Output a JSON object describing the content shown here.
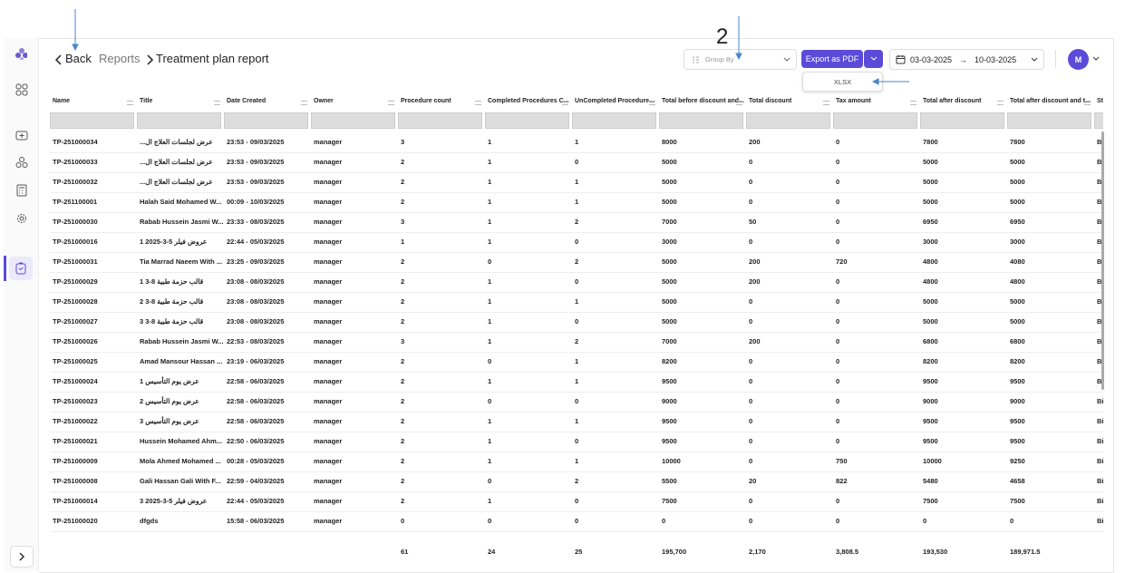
{
  "header": {
    "back": "Back",
    "breadcrumb": [
      "Reports",
      "Treatment plan report"
    ],
    "group_by": "Group By",
    "export": "Export as PDF",
    "export_menu": [
      "XLSX"
    ],
    "date_from": "03-03-2025",
    "date_to": "10-03-2025",
    "avatar": "M"
  },
  "annotations": {
    "label": "2"
  },
  "table": {
    "columns": [
      "Name",
      "Title",
      "Date Created",
      "Owner",
      "Procedure count",
      "Completed Procedures C...",
      "UnCompleted Procedure...",
      "Total before discount and...",
      "Total discount",
      "Tax amount",
      "Total after discount",
      "Total after discount and t...",
      "St"
    ],
    "rows": [
      [
        "TP-251000034",
        "عرض لجلسات العلاج ال...",
        "23:53 - 09/03/2025",
        "manager",
        "3",
        "1",
        "1",
        "8000",
        "200",
        "0",
        "7800",
        "7800",
        "Bi"
      ],
      [
        "TP-251000033",
        "عرض لجلسات العلاج ال...",
        "23:53 - 09/03/2025",
        "manager",
        "2",
        "1",
        "0",
        "5000",
        "0",
        "0",
        "5000",
        "5000",
        "Bi"
      ],
      [
        "TP-251000032",
        "عرض لجلسات العلاج ال...",
        "23:53 - 09/03/2025",
        "manager",
        "2",
        "1",
        "1",
        "5000",
        "0",
        "0",
        "5000",
        "5000",
        "Bi"
      ],
      [
        "TP-251100001",
        "Halah Said Mohamed W...",
        "00:09 - 10/03/2025",
        "manager",
        "2",
        "1",
        "1",
        "5000",
        "0",
        "0",
        "5000",
        "5000",
        "Bi"
      ],
      [
        "TP-251000030",
        "Rabab Hussein Jasmi W...",
        "23:33 - 08/03/2025",
        "manager",
        "3",
        "1",
        "2",
        "7000",
        "50",
        "0",
        "6950",
        "6950",
        "Bi"
      ],
      [
        "TP-251000016",
        "عروض فيلر 5-3-2025 1",
        "22:44 - 05/03/2025",
        "manager",
        "1",
        "1",
        "0",
        "3000",
        "0",
        "0",
        "3000",
        "3000",
        "Bi"
      ],
      [
        "TP-251000031",
        "Tia Marrad Naeem With ...",
        "23:25 - 09/03/2025",
        "manager",
        "2",
        "0",
        "2",
        "5000",
        "200",
        "720",
        "4800",
        "4080",
        "Bi"
      ],
      [
        "TP-251000029",
        "قالب حزمة طبية 8-3 1",
        "23:08 - 08/03/2025",
        "manager",
        "2",
        "1",
        "0",
        "5000",
        "200",
        "0",
        "4800",
        "4800",
        "Bi"
      ],
      [
        "TP-251000028",
        "قالب حزمة طبية 8-3 2",
        "23:08 - 08/03/2025",
        "manager",
        "2",
        "1",
        "1",
        "5000",
        "0",
        "0",
        "5000",
        "5000",
        "Bi"
      ],
      [
        "TP-251000027",
        "قالب حزمة طبية 8-3 3",
        "23:08 - 08/03/2025",
        "manager",
        "2",
        "1",
        "0",
        "5000",
        "0",
        "0",
        "5000",
        "5000",
        "Bi"
      ],
      [
        "TP-251000026",
        "Rabab Hussein Jasmi W...",
        "22:53 - 08/03/2025",
        "manager",
        "3",
        "1",
        "2",
        "7000",
        "200",
        "0",
        "6800",
        "6800",
        "Bi"
      ],
      [
        "TP-251000025",
        "Amad Mansour Hassan ...",
        "23:19 - 06/03/2025",
        "manager",
        "2",
        "0",
        "1",
        "8200",
        "0",
        "0",
        "8200",
        "8200",
        "Bi"
      ],
      [
        "TP-251000024",
        "عرض يوم التأسيس 1",
        "22:58 - 06/03/2025",
        "manager",
        "2",
        "1",
        "1",
        "9500",
        "0",
        "0",
        "9500",
        "9500",
        "Bi"
      ],
      [
        "TP-251000023",
        "عرض يوم التأسيس 2",
        "22:58 - 06/03/2025",
        "manager",
        "2",
        "0",
        "0",
        "9000",
        "0",
        "0",
        "9000",
        "9000",
        "Bi"
      ],
      [
        "TP-251000022",
        "عرض يوم التأسيس 3",
        "22:58 - 06/03/2025",
        "manager",
        "2",
        "1",
        "1",
        "9500",
        "0",
        "0",
        "9500",
        "9500",
        "Bi"
      ],
      [
        "TP-251000021",
        "Hussein Mohamed Ahm...",
        "22:50 - 06/03/2025",
        "manager",
        "2",
        "1",
        "0",
        "9500",
        "0",
        "0",
        "9500",
        "9500",
        "Bi"
      ],
      [
        "TP-251000009",
        "Mola Ahmed Mohamed ...",
        "00:28 - 05/03/2025",
        "manager",
        "2",
        "1",
        "1",
        "10000",
        "0",
        "750",
        "10000",
        "9250",
        "Bi"
      ],
      [
        "TP-251000008",
        "Gali Hassan Gali With F...",
        "22:59 - 04/03/2025",
        "manager",
        "2",
        "0",
        "2",
        "5500",
        "20",
        "822",
        "5480",
        "4658",
        "Bi"
      ],
      [
        "TP-251000014",
        "عروض فيلر 5-3-2025 3",
        "22:44 - 05/03/2025",
        "manager",
        "2",
        "1",
        "0",
        "7500",
        "0",
        "0",
        "7500",
        "7500",
        "Bi"
      ],
      [
        "TP-251000020",
        "dfgds",
        "15:58 - 06/03/2025",
        "manager",
        "0",
        "0",
        "0",
        "0",
        "0",
        "0",
        "0",
        "0",
        "Bi"
      ]
    ],
    "totals": [
      null,
      null,
      null,
      null,
      "61",
      "24",
      "25",
      "195,700",
      "2,170",
      "3,808.5",
      "193,530",
      "189,971.5",
      null
    ]
  }
}
